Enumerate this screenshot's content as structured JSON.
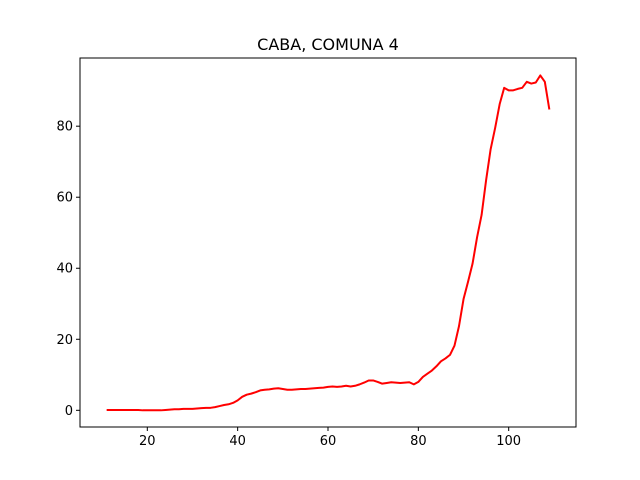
{
  "chart_data": {
    "type": "line",
    "title": "CABA, COMUNA 4",
    "xlabel": "",
    "ylabel": "",
    "xlim": [
      5.1,
      114.9
    ],
    "ylim": [
      -4.7,
      99.2
    ],
    "xticks": [
      20,
      40,
      60,
      80,
      100
    ],
    "yticks": [
      0,
      20,
      40,
      60,
      80
    ],
    "grid": false,
    "series": [
      {
        "color": "#ff0000",
        "x": [
          11,
          12,
          13,
          14,
          15,
          16,
          17,
          18,
          19,
          20,
          21,
          22,
          23,
          24,
          25,
          26,
          27,
          28,
          29,
          30,
          31,
          32,
          33,
          34,
          35,
          36,
          37,
          38,
          39,
          40,
          41,
          42,
          43,
          44,
          45,
          46,
          47,
          48,
          49,
          50,
          51,
          52,
          53,
          54,
          55,
          56,
          57,
          58,
          59,
          60,
          61,
          62,
          63,
          64,
          65,
          66,
          67,
          68,
          69,
          70,
          71,
          72,
          73,
          74,
          75,
          76,
          77,
          78,
          79,
          80,
          81,
          82,
          83,
          84,
          85,
          86,
          87,
          88,
          89,
          90,
          91,
          92,
          93,
          94,
          95,
          96,
          97,
          98,
          99,
          100,
          101,
          102,
          103,
          104,
          105,
          106,
          107,
          108,
          109
        ],
        "y": [
          0.1,
          0.1,
          0.1,
          0.1,
          0.1,
          0.1,
          0.1,
          0.1,
          0.0,
          0.0,
          0.0,
          0.0,
          0.0,
          0.1,
          0.2,
          0.3,
          0.3,
          0.4,
          0.4,
          0.4,
          0.5,
          0.6,
          0.7,
          0.7,
          0.9,
          1.2,
          1.5,
          1.7,
          2.1,
          2.8,
          3.8,
          4.4,
          4.7,
          5.1,
          5.6,
          5.8,
          5.9,
          6.1,
          6.2,
          6.0,
          5.8,
          5.8,
          5.9,
          6.0,
          6.0,
          6.1,
          6.2,
          6.3,
          6.4,
          6.6,
          6.7,
          6.6,
          6.7,
          6.9,
          6.7,
          6.9,
          7.3,
          7.8,
          8.4,
          8.4,
          8.0,
          7.5,
          7.7,
          7.9,
          7.8,
          7.7,
          7.8,
          7.9,
          7.3,
          8.0,
          9.4,
          10.3,
          11.2,
          12.4,
          13.8,
          14.6,
          15.6,
          18.2,
          23.7,
          31.3,
          36.2,
          41.3,
          48.7,
          55.0,
          64.8,
          73.5,
          79.5,
          86.2,
          90.8,
          90.1,
          90.1,
          90.5,
          90.8,
          92.5,
          92.0,
          92.3,
          94.3,
          92.5,
          84.7
        ]
      }
    ]
  }
}
